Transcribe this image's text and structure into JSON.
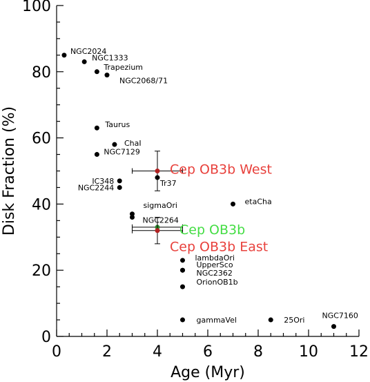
{
  "chart_data": {
    "type": "scatter",
    "xlabel": "Age (Myr)",
    "ylabel": "Disk Fraction (%)",
    "xlim": [
      0,
      12
    ],
    "ylim": [
      0,
      100
    ],
    "xticks": [
      "0",
      "2",
      "4",
      "6",
      "8",
      "10",
      "12"
    ],
    "yticks": [
      "0",
      "20",
      "40",
      "60",
      "80",
      "100"
    ],
    "grid": false,
    "points": [
      {
        "label": "NGC2024",
        "x": 0.3,
        "y": 85
      },
      {
        "label": "NGC1333",
        "x": 1.1,
        "y": 83
      },
      {
        "label": "Trapezium",
        "x": 1.6,
        "y": 80
      },
      {
        "label": "NGC2068/71",
        "x": 2.0,
        "y": 79
      },
      {
        "label": "Taurus",
        "x": 1.6,
        "y": 63
      },
      {
        "label": "ChaI",
        "x": 2.3,
        "y": 58
      },
      {
        "label": "NGC7129",
        "x": 1.6,
        "y": 55
      },
      {
        "label": "Tr37",
        "x": 4.0,
        "y": 48
      },
      {
        "label": "IC348",
        "x": 2.5,
        "y": 47
      },
      {
        "label": "NGC2244",
        "x": 2.5,
        "y": 45
      },
      {
        "label": "etaCha",
        "x": 7.0,
        "y": 40
      },
      {
        "label": "sigmaOri",
        "x": 3.0,
        "y": 37
      },
      {
        "label": "NGC2264",
        "x": 3.0,
        "y": 36
      },
      {
        "label": "lambdaOri",
        "x": 5.0,
        "y": 23
      },
      {
        "label": "UpperSco",
        "x": 5.0,
        "y": 20
      },
      {
        "label": "NGC2362",
        "x": 5.0,
        "y": 20
      },
      {
        "label": "OrionOB1b",
        "x": 5.0,
        "y": 15
      },
      {
        "label": "gammaVel",
        "x": 5.0,
        "y": 5
      },
      {
        "label": "25Ori",
        "x": 8.5,
        "y": 5
      },
      {
        "label": "NGC7160",
        "x": 11.0,
        "y": 3
      }
    ],
    "highlighted": [
      {
        "label": "Cep OB3b West",
        "x": 4.0,
        "y": 50,
        "yerr": 6,
        "xerr": 1.0,
        "color": "#b22222",
        "text_color": "#e8413c"
      },
      {
        "label": "Cep OB3b",
        "x": 4.0,
        "y": 33,
        "yerr": 0,
        "xerr": 1.0,
        "color": "#2e8b2e",
        "text_color": "#44dd44"
      },
      {
        "label": "Cep OB3b East",
        "x": 4.0,
        "y": 32,
        "yerr": 4,
        "xerr": 1.0,
        "color": "#b22222",
        "text_color": "#e8413c"
      }
    ]
  }
}
